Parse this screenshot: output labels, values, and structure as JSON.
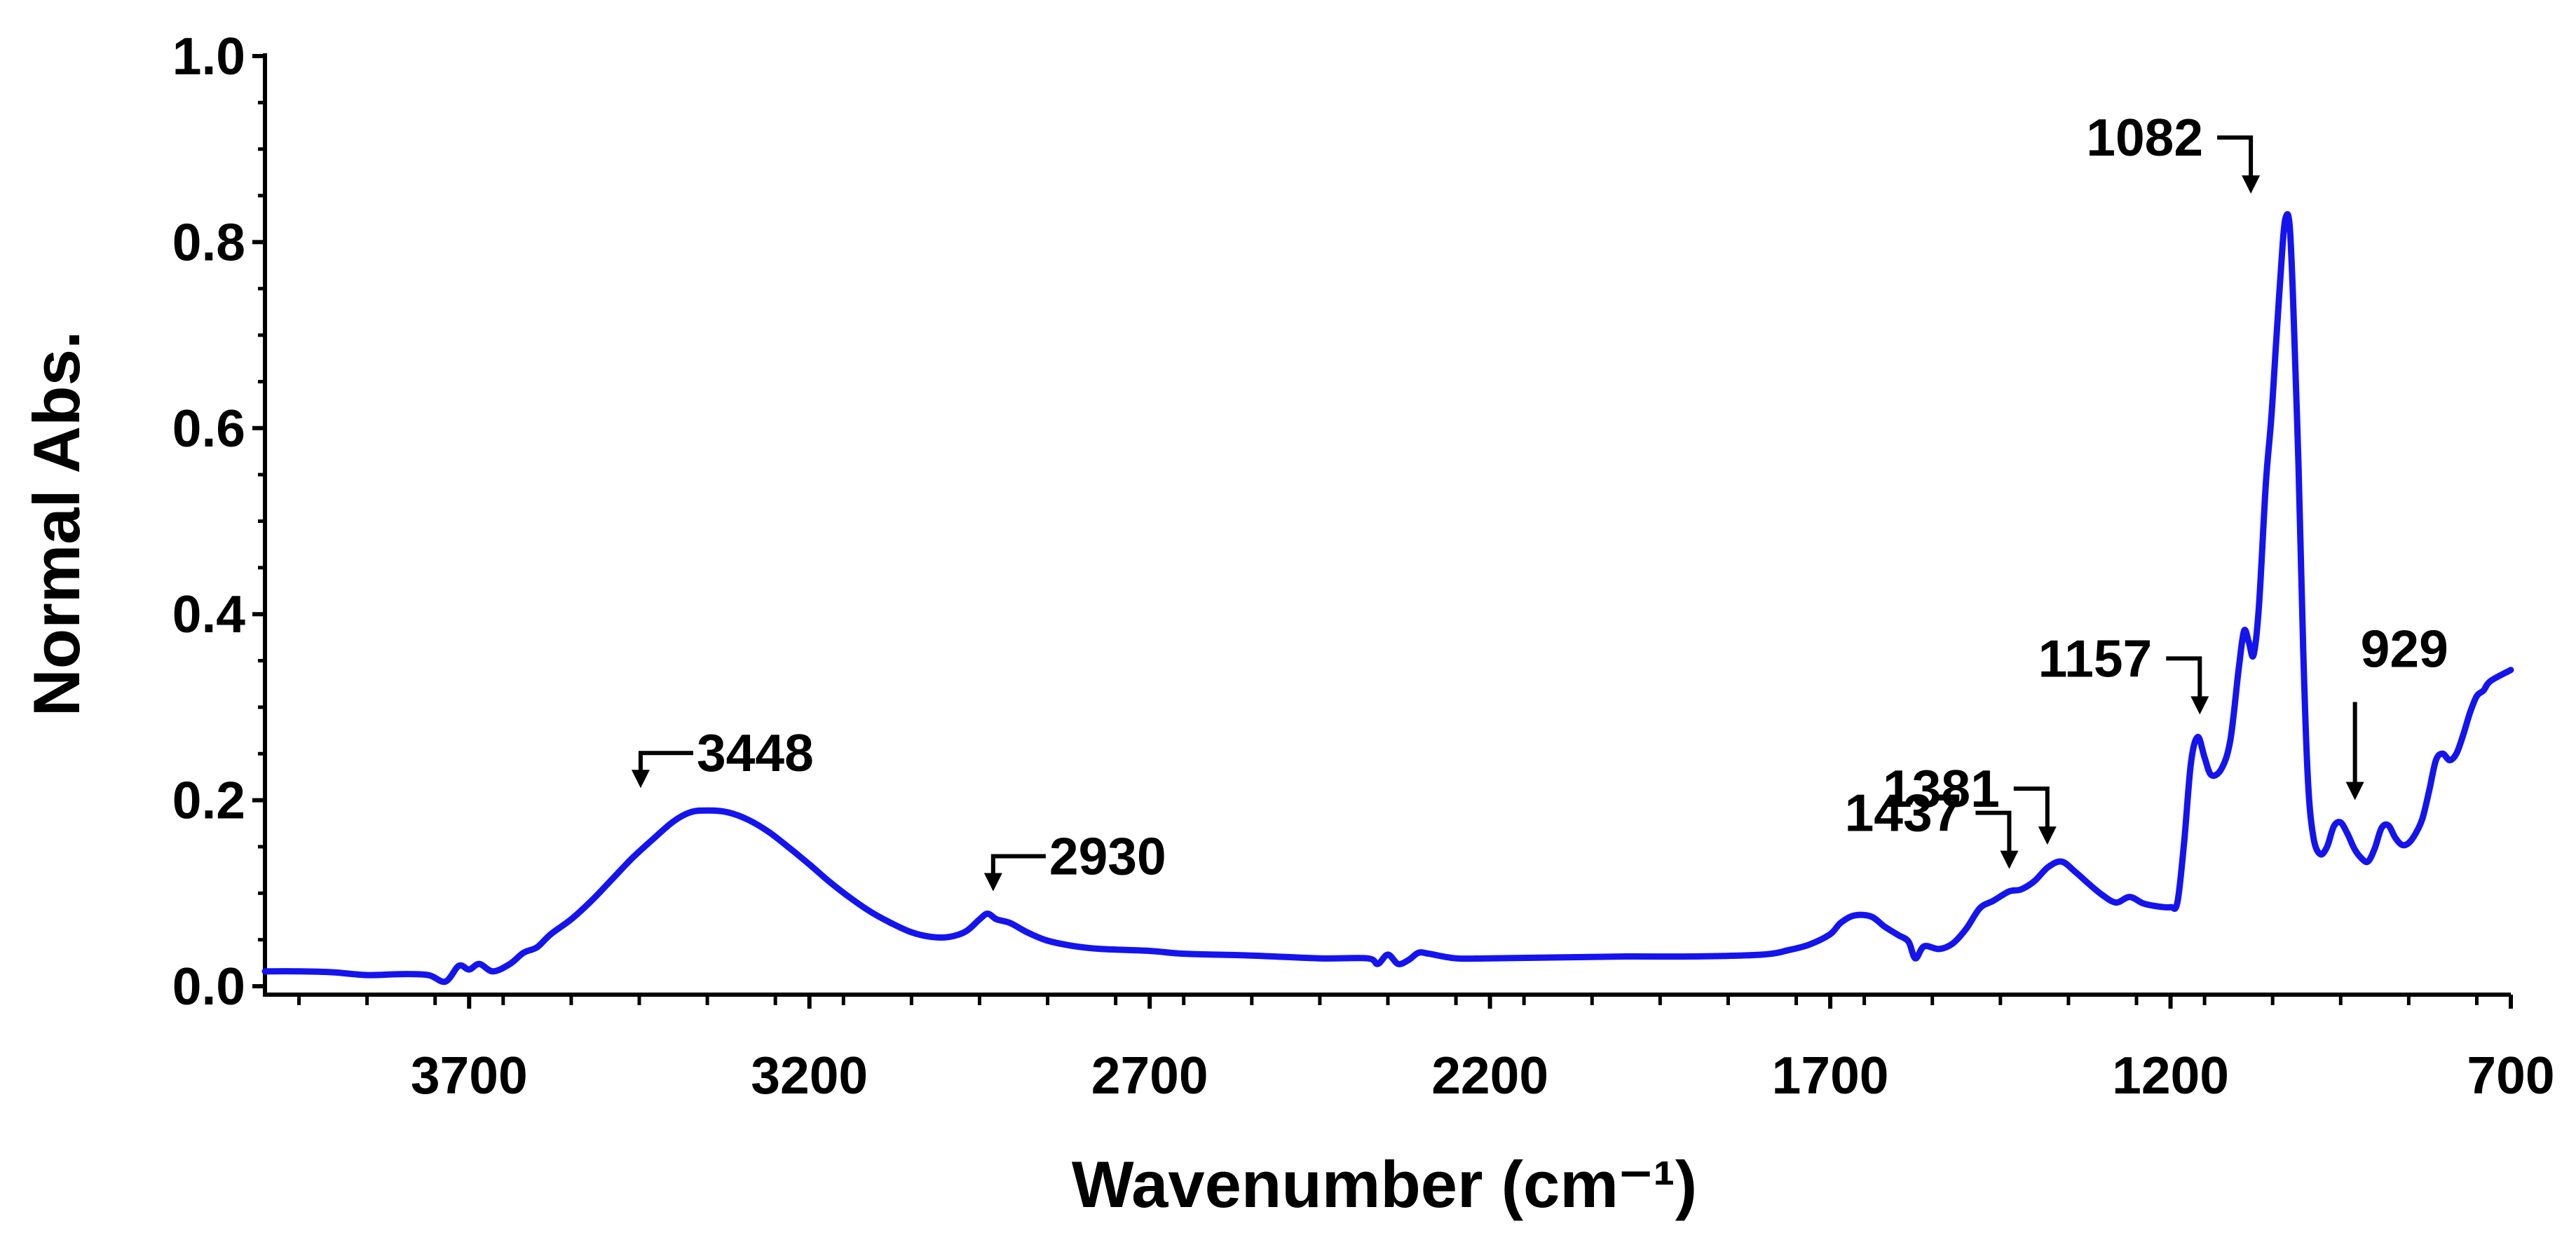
{
  "chart_data": {
    "type": "line",
    "xlabel": "Wavenumber (cm⁻¹)",
    "ylabel": "Normal Abs.",
    "x_ticks": [
      3700,
      3200,
      2700,
      2200,
      1700,
      1200,
      700
    ],
    "y_ticks": [
      "0.0",
      "0.2",
      "0.4",
      "0.6",
      "0.8",
      "1.0"
    ],
    "xlim": [
      4000,
      700
    ],
    "ylim": [
      0,
      1.0
    ],
    "x_reversed": true,
    "grid": false,
    "line_color": "#1414ee",
    "series": [
      {
        "points": [
          [
            4000,
            0.016
          ],
          [
            3950,
            0.016
          ],
          [
            3900,
            0.015
          ],
          [
            3850,
            0.012
          ],
          [
            3800,
            0.013
          ],
          [
            3760,
            0.012
          ],
          [
            3735,
            0.005
          ],
          [
            3715,
            0.022
          ],
          [
            3700,
            0.018
          ],
          [
            3685,
            0.024
          ],
          [
            3665,
            0.016
          ],
          [
            3640,
            0.024
          ],
          [
            3620,
            0.036
          ],
          [
            3600,
            0.042
          ],
          [
            3580,
            0.056
          ],
          [
            3550,
            0.072
          ],
          [
            3520,
            0.092
          ],
          [
            3490,
            0.115
          ],
          [
            3460,
            0.138
          ],
          [
            3430,
            0.158
          ],
          [
            3400,
            0.177
          ],
          [
            3375,
            0.187
          ],
          [
            3350,
            0.189
          ],
          [
            3320,
            0.187
          ],
          [
            3290,
            0.179
          ],
          [
            3260,
            0.166
          ],
          [
            3230,
            0.149
          ],
          [
            3200,
            0.131
          ],
          [
            3170,
            0.112
          ],
          [
            3140,
            0.095
          ],
          [
            3110,
            0.08
          ],
          [
            3080,
            0.068
          ],
          [
            3050,
            0.058
          ],
          [
            3020,
            0.053
          ],
          [
            2995,
            0.053
          ],
          [
            2970,
            0.059
          ],
          [
            2950,
            0.072
          ],
          [
            2938,
            0.078
          ],
          [
            2925,
            0.072
          ],
          [
            2905,
            0.068
          ],
          [
            2880,
            0.058
          ],
          [
            2850,
            0.049
          ],
          [
            2810,
            0.043
          ],
          [
            2770,
            0.04
          ],
          [
            2700,
            0.038
          ],
          [
            2650,
            0.035
          ],
          [
            2550,
            0.033
          ],
          [
            2450,
            0.03
          ],
          [
            2380,
            0.03
          ],
          [
            2365,
            0.024
          ],
          [
            2350,
            0.034
          ],
          [
            2335,
            0.024
          ],
          [
            2320,
            0.028
          ],
          [
            2305,
            0.036
          ],
          [
            2290,
            0.035
          ],
          [
            2250,
            0.03
          ],
          [
            2200,
            0.03
          ],
          [
            2100,
            0.031
          ],
          [
            2000,
            0.032
          ],
          [
            1900,
            0.032
          ],
          [
            1800,
            0.034
          ],
          [
            1760,
            0.039
          ],
          [
            1730,
            0.045
          ],
          [
            1700,
            0.056
          ],
          [
            1685,
            0.068
          ],
          [
            1665,
            0.076
          ],
          [
            1640,
            0.075
          ],
          [
            1620,
            0.064
          ],
          [
            1600,
            0.055
          ],
          [
            1585,
            0.048
          ],
          [
            1575,
            0.03
          ],
          [
            1562,
            0.043
          ],
          [
            1540,
            0.04
          ],
          [
            1520,
            0.046
          ],
          [
            1500,
            0.062
          ],
          [
            1480,
            0.084
          ],
          [
            1460,
            0.092
          ],
          [
            1437,
            0.102
          ],
          [
            1420,
            0.104
          ],
          [
            1400,
            0.113
          ],
          [
            1380,
            0.128
          ],
          [
            1360,
            0.134
          ],
          [
            1340,
            0.123
          ],
          [
            1320,
            0.11
          ],
          [
            1300,
            0.098
          ],
          [
            1280,
            0.09
          ],
          [
            1260,
            0.096
          ],
          [
            1240,
            0.089
          ],
          [
            1220,
            0.086
          ],
          [
            1200,
            0.085
          ],
          [
            1190,
            0.09
          ],
          [
            1180,
            0.155
          ],
          [
            1170,
            0.24
          ],
          [
            1160,
            0.268
          ],
          [
            1150,
            0.246
          ],
          [
            1140,
            0.227
          ],
          [
            1125,
            0.234
          ],
          [
            1112,
            0.265
          ],
          [
            1100,
            0.34
          ],
          [
            1092,
            0.382
          ],
          [
            1085,
            0.37
          ],
          [
            1078,
            0.356
          ],
          [
            1070,
            0.41
          ],
          [
            1060,
            0.54
          ],
          [
            1052,
            0.61
          ],
          [
            1045,
            0.69
          ],
          [
            1035,
            0.8
          ],
          [
            1030,
            0.828
          ],
          [
            1025,
            0.818
          ],
          [
            1020,
            0.74
          ],
          [
            1012,
            0.56
          ],
          [
            1005,
            0.36
          ],
          [
            998,
            0.22
          ],
          [
            990,
            0.16
          ],
          [
            980,
            0.142
          ],
          [
            970,
            0.15
          ],
          [
            960,
            0.172
          ],
          [
            950,
            0.176
          ],
          [
            940,
            0.164
          ],
          [
            930,
            0.148
          ],
          [
            920,
            0.138
          ],
          [
            910,
            0.134
          ],
          [
            900,
            0.148
          ],
          [
            890,
            0.17
          ],
          [
            880,
            0.173
          ],
          [
            870,
            0.16
          ],
          [
            860,
            0.152
          ],
          [
            850,
            0.154
          ],
          [
            840,
            0.164
          ],
          [
            830,
            0.18
          ],
          [
            820,
            0.21
          ],
          [
            810,
            0.243
          ],
          [
            800,
            0.25
          ],
          [
            790,
            0.243
          ],
          [
            780,
            0.25
          ],
          [
            770,
            0.27
          ],
          [
            760,
            0.294
          ],
          [
            750,
            0.312
          ],
          [
            740,
            0.318
          ],
          [
            730,
            0.328
          ],
          [
            700,
            0.34
          ]
        ]
      }
    ],
    "annotations": [
      {
        "label": "3448",
        "x": 3448,
        "y": 0.189
      },
      {
        "label": "2930",
        "x": 2930,
        "y": 0.078
      },
      {
        "label": "1437",
        "x": 1437,
        "y": 0.102
      },
      {
        "label": "1381",
        "x": 1381,
        "y": 0.128
      },
      {
        "label": "1157",
        "x": 1157,
        "y": 0.268
      },
      {
        "label": "1082",
        "x": 1082,
        "y": 0.828
      },
      {
        "label": "929",
        "x": 929,
        "y": 0.176
      }
    ]
  }
}
